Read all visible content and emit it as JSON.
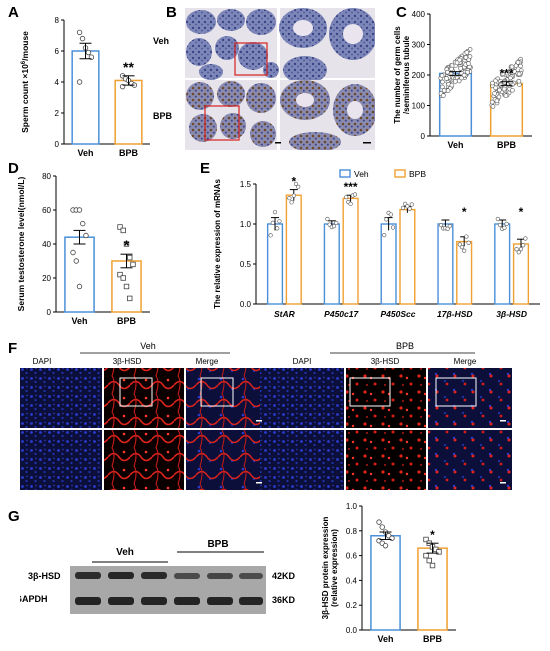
{
  "colors": {
    "veh": "#4a90d9",
    "bpb": "#f0a030",
    "dapi": "#1e2b8a",
    "hsd": "#e0241c",
    "box_red": "#d42020",
    "box_white": "#ffffff"
  },
  "panels": {
    "A": {
      "letter": "A",
      "chart_data": {
        "type": "bar",
        "categories": [
          "Veh",
          "BPB"
        ],
        "values": [
          6.0,
          4.1
        ],
        "errors": [
          0.5,
          0.3
        ],
        "points": [
          [
            7.2,
            6.8,
            6.2,
            5.9,
            5.6,
            4.0
          ],
          [
            4.4,
            4.2,
            4.1,
            3.9,
            3.8,
            3.7
          ]
        ],
        "ylim": [
          0,
          8
        ],
        "yticks": [
          "0",
          "2",
          "4",
          "6",
          "8"
        ],
        "ylabel": "Sperm count ×10",
        "ylabel_sup": "6",
        "ylabel_tail": "/mouse",
        "sig": [
          "",
          "**"
        ]
      }
    },
    "B": {
      "letter": "B",
      "row_labels": [
        "Veh",
        "BPB"
      ]
    },
    "C": {
      "letter": "C",
      "chart_data": {
        "type": "bar",
        "categories": [
          "Veh",
          "BPB"
        ],
        "values": [
          205,
          172
        ],
        "errors": [
          6,
          6
        ],
        "ylim": [
          0,
          400
        ],
        "yticks": [
          "0",
          "100",
          "200",
          "300",
          "400"
        ],
        "ylabel_line1": "The number of germ cells",
        "ylabel_line2": "/seminiferous tubule",
        "sig": [
          "",
          "***"
        ]
      }
    },
    "D": {
      "letter": "D",
      "chart_data": {
        "type": "bar",
        "categories": [
          "Veh",
          "BPB"
        ],
        "values": [
          44,
          30
        ],
        "errors": [
          4,
          4
        ],
        "points": [
          [
            60,
            60,
            60,
            52,
            45,
            35,
            30,
            15
          ],
          [
            50,
            48,
            40,
            32,
            28,
            22,
            20,
            15,
            8
          ]
        ],
        "ylim": [
          0,
          80
        ],
        "yticks": [
          "0",
          "20",
          "40",
          "60",
          "80"
        ],
        "ylabel": "Serum testosterone level(nmol/L)",
        "sig": [
          "",
          "*"
        ]
      }
    },
    "E": {
      "letter": "E",
      "chart_data": {
        "type": "bar",
        "categories": [
          "StAR",
          "P450c17",
          "P450Scc",
          "17β-HSD",
          "3β-HSD"
        ],
        "series": [
          {
            "name": "Veh",
            "values": [
              1.0,
              1.0,
              1.0,
              1.0,
              1.0
            ],
            "errors": [
              0.08,
              0.04,
              0.08,
              0.05,
              0.05
            ]
          },
          {
            "name": "BPB",
            "values": [
              1.36,
              1.32,
              1.18,
              0.78,
              0.75
            ],
            "errors": [
              0.07,
              0.04,
              0.04,
              0.06,
              0.06
            ]
          }
        ],
        "ylim": [
          0,
          1.5
        ],
        "yticks": [
          "0.0",
          "0.5",
          "1.0",
          "1.5"
        ],
        "ylabel": "The relative expression of mRNAs",
        "sig": [
          "*",
          "***",
          "",
          "*",
          "*"
        ],
        "legend": "top"
      }
    },
    "F": {
      "letter": "F",
      "groups": [
        "Veh",
        "BPB"
      ],
      "channels": [
        "DAPI",
        "3β-HSD",
        "Merge"
      ]
    },
    "G": {
      "letter": "G",
      "blot": {
        "groups": [
          "Veh",
          "BPB"
        ],
        "rows": [
          "3β-HSD",
          "GAPDH"
        ],
        "sizes": [
          "42KD",
          "36KD"
        ]
      },
      "chart_data": {
        "type": "bar",
        "categories": [
          "Veh",
          "BPB"
        ],
        "values": [
          0.76,
          0.66
        ],
        "errors": [
          0.03,
          0.04
        ],
        "points": [
          [
            0.87,
            0.83,
            0.79,
            0.76,
            0.74,
            0.72,
            0.7,
            0.68
          ],
          [
            0.73,
            0.7,
            0.67,
            0.65,
            0.63,
            0.6,
            0.56,
            0.52
          ]
        ],
        "ylim": [
          0,
          1.0
        ],
        "yticks": [
          "0.0",
          "0.2",
          "0.4",
          "0.6",
          "0.8",
          "1.0"
        ],
        "ylabel_line1": "3β-HSD protein expression",
        "ylabel_line2": "(relative expression)",
        "sig": [
          "",
          "*"
        ]
      }
    }
  }
}
